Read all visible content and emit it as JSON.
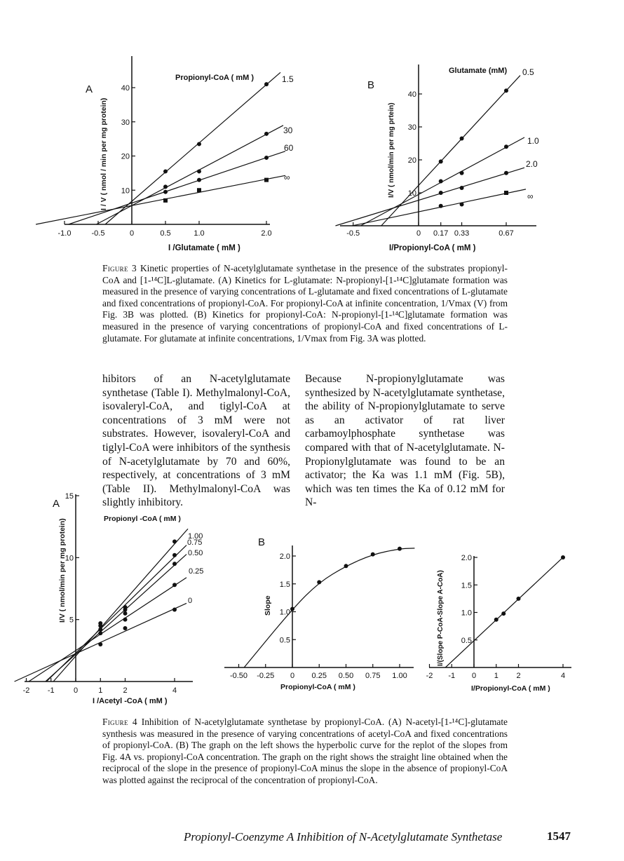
{
  "figure3": {
    "panelA": {
      "label": "A",
      "legend_title": "Propionyl-CoA ( mM )",
      "ylabel": "I / V ( nmol / min per mg protein)",
      "xlabel": "I /Glutamate ( mM )",
      "x_ticks": [
        "-1.0",
        "-0.5",
        "0",
        "0.5",
        "1.0",
        "2.0"
      ],
      "y_ticks": [
        "10",
        "20",
        "30",
        "40"
      ],
      "series_labels": [
        "1.5",
        "30",
        "60",
        "∞"
      ]
    },
    "panelB": {
      "label": "B",
      "legend_title": "Glutamate (mM)",
      "ylabel": "I/V ( nmol/min per mg prtein)",
      "xlabel": "I/Propionyl-CoA ( mM )",
      "x_ticks": [
        "-0.5",
        "0",
        "0.17",
        "0.33",
        "0.67"
      ],
      "y_ticks": [
        "10",
        "20",
        "30",
        "40"
      ],
      "series_labels": [
        "0.5",
        "1.0",
        "2.0",
        "∞"
      ]
    },
    "caption_label": "Figure 3",
    "caption": "Kinetic properties of N-acetylglutamate synthetase in the presence of the substrates propionyl-CoA and [1-¹⁴C]L-glutamate. (A) Kinetics for L-glutamate: N-propionyl-[1-¹⁴C]glutamate formation was measured in the presence of varying concentrations of L-glutamate and fixed concentrations of L-glutamate and fixed concentrations of propionyl-CoA. For propionyl-CoA at infinite concentration, 1/Vmax (V) from Fig. 3B was plotted. (B) Kinetics for propionyl-CoA: N-propionyl-[1-¹⁴C]glutamate formation was measured in the presence of varying concentrations of propionyl-CoA and fixed concentrations of L-glutamate. For glutamate at infinite concentrations, 1/Vmax from Fig. 3A was plotted."
  },
  "body": {
    "left": "hibitors of an N-acetylglutamate synthetase (Table I). Methylmalonyl-CoA, isovaleryl-CoA, and tiglyl-CoA at concentrations of 3 mM were not substrates. However, isovaleryl-CoA and tiglyl-CoA were inhibitors of the synthesis of N-acetylglutamate by 70 and 60%, respectively, at concentrations of 3 mM (Table II). Methylmalonyl-CoA was slightly inhibitory.",
    "right": "Because N-propionylglutamate was synthesized by N-acetylglutamate synthetase, the ability of N-propionylglutamate to serve as an activator of rat liver carbamoylphosphate synthetase was compared with that of N-acetylglutamate. N-Propionylglutamate was found to be an activator; the Ka was 1.1 mM (Fig. 5B), which was ten times the Ka of 0.12 mM for N-"
  },
  "figure4": {
    "panelA": {
      "label": "A",
      "legend_title": "Propionyl -CoA ( mM )",
      "ylabel": "I/V ( nmol/min per mg protein)",
      "xlabel": "I /Acetyl -CoA ( mM )",
      "x_ticks": [
        "-2",
        "-1",
        "0",
        "1",
        "2",
        "4"
      ],
      "y_ticks": [
        "5",
        "10",
        "15"
      ],
      "series_labels": [
        "1.00",
        "0.75",
        "0.50",
        "0.25",
        "0"
      ]
    },
    "panelB_left": {
      "label": "B",
      "ylabel": "Slope",
      "xlabel": "Propionyl-CoA ( mM )",
      "x_ticks": [
        "-0.50",
        "-0.25",
        "0",
        "0.25",
        "0.50",
        "0.75",
        "1.00"
      ],
      "y_ticks": [
        "0.5",
        "1.0",
        "1.5",
        "2.0"
      ]
    },
    "panelB_right": {
      "ylabel": "I/(Slope P-CoA-Slope A-CoA)",
      "xlabel": "I/Propionyl-CoA ( mM )",
      "x_ticks": [
        "-2",
        "-1",
        "0",
        "1",
        "2",
        "4"
      ],
      "y_ticks": [
        "0.5",
        "1.0",
        "1.5",
        "2.0"
      ]
    },
    "caption_label": "Figure 4",
    "caption": "Inhibition of N-acetylglutamate synthetase by propionyl-CoA. (A) N-acetyl-[1-¹⁴C]-glutamate synthesis was measured in the presence of varying concentrations of acetyl-CoA and fixed concentrations of propionyl-CoA. (B) The graph on the left shows the hyperbolic curve for the replot of the slopes from Fig. 4A vs. propionyl-CoA concentration. The graph on the right shows the straight line obtained when the reciprocal of the slope in the presence of propionyl-CoA minus the slope in the absence of propionyl-CoA was plotted against the reciprocal of the concentration of propionyl-CoA."
  },
  "footer": {
    "running_title": "Propionyl-Coenzyme A Inhibition of N-Acetylglutamate Synthetase",
    "page_number": "1547"
  },
  "chart_data": [
    {
      "type": "line",
      "x": [
        0.5,
        1.0,
        2.0
      ],
      "series": [
        {
          "name": "1.5",
          "values": [
            15.5,
            23.5,
            41
          ]
        },
        {
          "name": "30",
          "values": [
            11,
            15.5,
            26.5
          ]
        },
        {
          "name": "60",
          "values": [
            9.5,
            13,
            19.5
          ]
        },
        {
          "name": "∞",
          "values": [
            7,
            10,
            13
          ]
        }
      ],
      "xlabel": "I /Glutamate ( mM )",
      "ylabel": "I / V ( nmol / min per mg protein)",
      "xlim": [
        -1.0,
        2.0
      ],
      "ylim": [
        0,
        45
      ]
    },
    {
      "type": "line",
      "x": [
        0.17,
        0.33,
        0.67
      ],
      "series": [
        {
          "name": "0.5",
          "values": [
            19.5,
            26.5,
            41
          ]
        },
        {
          "name": "1.0",
          "values": [
            13.5,
            16,
            24
          ]
        },
        {
          "name": "2.0",
          "values": [
            10,
            11.5,
            16
          ]
        },
        {
          "name": "∞",
          "values": [
            6,
            6.5,
            10
          ]
        }
      ],
      "xlabel": "I/Propionyl-CoA ( mM )",
      "ylabel": "I/V ( nmol/min per mg prtein)",
      "xlim": [
        -0.5,
        0.67
      ],
      "ylim": [
        0,
        45
      ]
    },
    {
      "type": "line",
      "x": [
        1,
        2,
        4
      ],
      "series": [
        {
          "name": "1.00",
          "values": [
            4.7,
            6.0,
            11.3
          ]
        },
        {
          "name": "0.75",
          "values": [
            4.5,
            5.8,
            10.2
          ]
        },
        {
          "name": "0.50",
          "values": [
            4.2,
            5.5,
            9.5
          ]
        },
        {
          "name": "0.25",
          "values": [
            3.9,
            5.0,
            7.8
          ]
        },
        {
          "name": "0",
          "values": [
            3.0,
            4.3,
            5.8
          ]
        }
      ],
      "xlabel": "I /Acetyl -CoA ( mM )",
      "ylabel": "I/V ( nmol/min per mg protein)",
      "xlim": [
        -2,
        4
      ],
      "ylim": [
        0,
        15
      ]
    },
    {
      "type": "line",
      "x": [
        0,
        0.25,
        0.5,
        0.75,
        1.0
      ],
      "values": [
        1.05,
        1.53,
        1.82,
        2.03,
        2.13
      ],
      "xlabel": "Propionyl-CoA ( mM )",
      "ylabel": "Slope",
      "xlim": [
        -0.5,
        1.0
      ],
      "ylim": [
        0,
        2.2
      ]
    },
    {
      "type": "line",
      "x": [
        1,
        1.33,
        2,
        4
      ],
      "values": [
        0.87,
        0.98,
        1.25,
        2.0
      ],
      "xlabel": "I/Propionyl-CoA ( mM )",
      "ylabel": "I/(Slope P-CoA-Slope A-CoA)",
      "xlim": [
        -2,
        4
      ],
      "ylim": [
        0,
        2.0
      ]
    }
  ]
}
